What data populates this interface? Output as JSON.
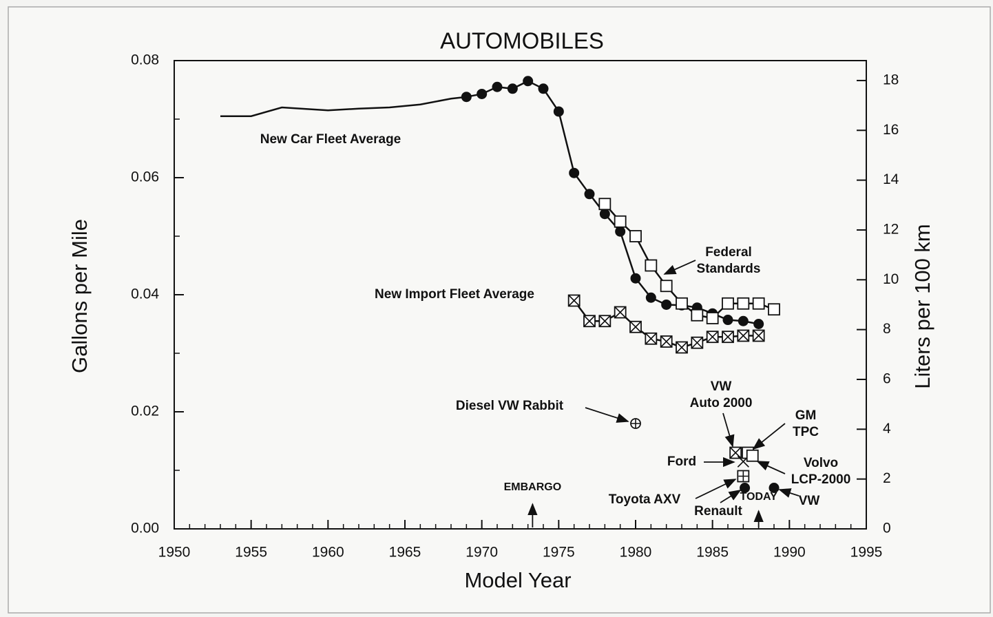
{
  "chart_data": {
    "type": "line",
    "title": "AUTOMOBILES",
    "xlabel": "Model Year",
    "ylabel": "Gallons per Mile",
    "y2label": "Liters per 100 km",
    "xlim": [
      1950,
      1995
    ],
    "xticks": [
      1950,
      1955,
      1960,
      1965,
      1970,
      1975,
      1980,
      1985,
      1990,
      1995
    ],
    "ylim": [
      0,
      0.08
    ],
    "yticks": [
      {
        "value": 0,
        "label": "0.00"
      },
      {
        "value": 0.02,
        "label": "0.02"
      },
      {
        "value": 0.04,
        "label": "0.04"
      },
      {
        "value": 0.06,
        "label": "0.06"
      },
      {
        "value": 0.08,
        "label": "0.08"
      }
    ],
    "y2lim": [
      0,
      18.8
    ],
    "y2ticks": [
      0,
      2,
      4,
      6,
      8,
      10,
      12,
      14,
      16,
      18
    ],
    "series": [
      {
        "color": "#111111",
        "marker": "none",
        "x": [
          1953,
          1955,
          1957,
          1960,
          1962,
          1964,
          1966,
          1968,
          1969
        ],
        "values": [
          0.0705,
          0.0705,
          0.072,
          0.0715,
          0.0718,
          0.072,
          0.0725,
          0.0735,
          0.0738
        ]
      },
      {
        "color": "#111111",
        "marker": "circle",
        "x": [
          1969,
          1970,
          1971,
          1972,
          1973,
          1974,
          1975,
          1976,
          1977,
          1978,
          1979,
          1980,
          1981,
          1982,
          1983,
          1984,
          1985,
          1986,
          1987,
          1988
        ],
        "values": [
          0.0738,
          0.0743,
          0.0755,
          0.0752,
          0.0765,
          0.0752,
          0.0713,
          0.0608,
          0.0572,
          0.0538,
          0.0508,
          0.0428,
          0.0395,
          0.0383,
          0.0382,
          0.0378,
          0.0368,
          0.0357,
          0.0355,
          0.035
        ]
      },
      {
        "color": "#111111",
        "marker": "square",
        "x": [
          1978,
          1979,
          1980,
          1981,
          1982,
          1983,
          1984,
          1985,
          1986,
          1987,
          1988,
          1989
        ],
        "values": [
          0.0555,
          0.0525,
          0.05,
          0.045,
          0.0415,
          0.0385,
          0.0365,
          0.036,
          0.0385,
          0.0385,
          0.0385,
          0.0375
        ]
      },
      {
        "color": "#111111",
        "marker": "x-square",
        "x": [
          1976,
          1977,
          1978,
          1979,
          1980,
          1981,
          1982,
          1983,
          1984,
          1985,
          1986,
          1987,
          1988
        ],
        "values": [
          0.039,
          0.0355,
          0.0355,
          0.037,
          0.0345,
          0.0325,
          0.032,
          0.031,
          0.0318,
          0.0328,
          0.0328,
          0.033,
          0.033
        ]
      }
    ],
    "labels": [
      {
        "text": [
          "New Car Fleet Average"
        ]
      },
      {
        "text": [
          "New Import Fleet Average"
        ]
      },
      {
        "text": [
          "Federal",
          "Standards"
        ]
      }
    ],
    "events": [
      {
        "text": "EMBARGO",
        "x": 1973.3
      },
      {
        "text": "TODAY",
        "x": 1988
      }
    ],
    "prototypes": [
      {
        "text": [
          "Diesel VW Rabbit"
        ],
        "x": 1980,
        "y": 0.018,
        "marker": "plus-circle"
      },
      {
        "text": [
          "VW",
          "Auto 2000"
        ],
        "x": 1986.5,
        "y": 0.013,
        "marker": "x-square"
      },
      {
        "text": [
          "GM",
          "TPC"
        ],
        "x": 1987.3,
        "y": 0.013,
        "marker": "square"
      },
      {
        "text": [
          "Ford"
        ],
        "x": 1987,
        "y": 0.0115,
        "marker": "x"
      },
      {
        "text": [
          "Volvo",
          "LCP-2000"
        ],
        "x": 1987.6,
        "y": 0.0125,
        "marker": "square"
      },
      {
        "text": [
          "Toyota AXV"
        ],
        "x": 1987,
        "y": 0.009,
        "marker": "plus-square"
      },
      {
        "text": [
          "Renault"
        ],
        "x": 1987.1,
        "y": 0.007,
        "marker": "circle"
      },
      {
        "text": [
          "VW"
        ],
        "x": 1989,
        "y": 0.007,
        "marker": "circle"
      }
    ]
  }
}
